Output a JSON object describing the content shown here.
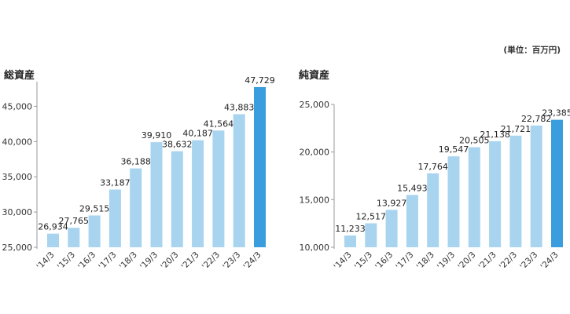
{
  "unit_note": "(単位：百万円)",
  "chart_data": [
    {
      "type": "bar",
      "title": "総資産",
      "categories": [
        "'14/3",
        "'15/3",
        "'16/3",
        "'17/3",
        "'18/3",
        "'19/3",
        "'20/3",
        "'21/3",
        "'22/3",
        "'23/3",
        "'24/3"
      ],
      "values": [
        26934,
        27765,
        29515,
        33187,
        36188,
        39910,
        38632,
        40187,
        41564,
        43883,
        47729
      ],
      "value_labels": [
        "26,934",
        "27,765",
        "29,515",
        "33,187",
        "36,188",
        "39,910",
        "38,632",
        "40,187",
        "41,564",
        "43,883",
        "47,729"
      ],
      "ylim": [
        25000,
        48500
      ],
      "yticks": [
        25000,
        30000,
        35000,
        40000,
        45000
      ],
      "ytick_labels": [
        "25,000",
        "30,000",
        "35,000",
        "40,000",
        "45,000"
      ],
      "bar_color": "#a8d4ef",
      "highlight_color": "#3a9ddd",
      "highlight_index": 10
    },
    {
      "type": "bar",
      "title": "純資産",
      "categories": [
        "'14/3",
        "'15/3",
        "'16/3",
        "'17/3",
        "'18/3",
        "'19/3",
        "'20/3",
        "'21/3",
        "'22/3",
        "'23/3",
        "'24/3"
      ],
      "values": [
        11233,
        12517,
        13927,
        15493,
        17764,
        19547,
        20505,
        21138,
        21721,
        22782,
        23385
      ],
      "value_labels": [
        "11,233",
        "12,517",
        "13,927",
        "15,493",
        "17,764",
        "19,547",
        "20,505",
        "21,138",
        "21,721",
        "22,782",
        "23,385"
      ],
      "ylim": [
        10000,
        25000
      ],
      "yticks": [
        10000,
        15000,
        20000,
        25000
      ],
      "ytick_labels": [
        "10,000",
        "15,000",
        "20,000",
        "25,000"
      ],
      "bar_color": "#a8d4ef",
      "highlight_color": "#3a9ddd",
      "highlight_index": 10
    }
  ]
}
